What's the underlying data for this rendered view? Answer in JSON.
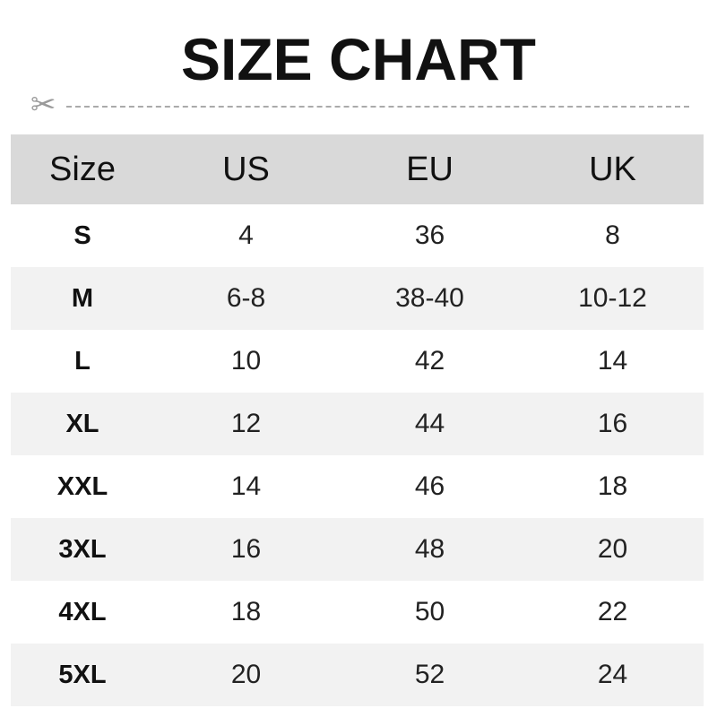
{
  "title": "SIZE CHART",
  "icons": {
    "cut": "scissors-icon"
  },
  "table": {
    "headers": [
      "Size",
      "US",
      "EU",
      "UK"
    ],
    "rows": [
      [
        "S",
        "4",
        "36",
        "8"
      ],
      [
        "M",
        "6-8",
        "38-40",
        "10-12"
      ],
      [
        "L",
        "10",
        "42",
        "14"
      ],
      [
        "XL",
        "12",
        "44",
        "16"
      ],
      [
        "XXL",
        "14",
        "46",
        "18"
      ],
      [
        "3XL",
        "16",
        "48",
        "20"
      ],
      [
        "4XL",
        "18",
        "50",
        "22"
      ],
      [
        "5XL",
        "20",
        "52",
        "24"
      ]
    ]
  },
  "colors": {
    "header_bg": "#d9d9d9",
    "alt_row_bg": "#f2f2f2"
  }
}
